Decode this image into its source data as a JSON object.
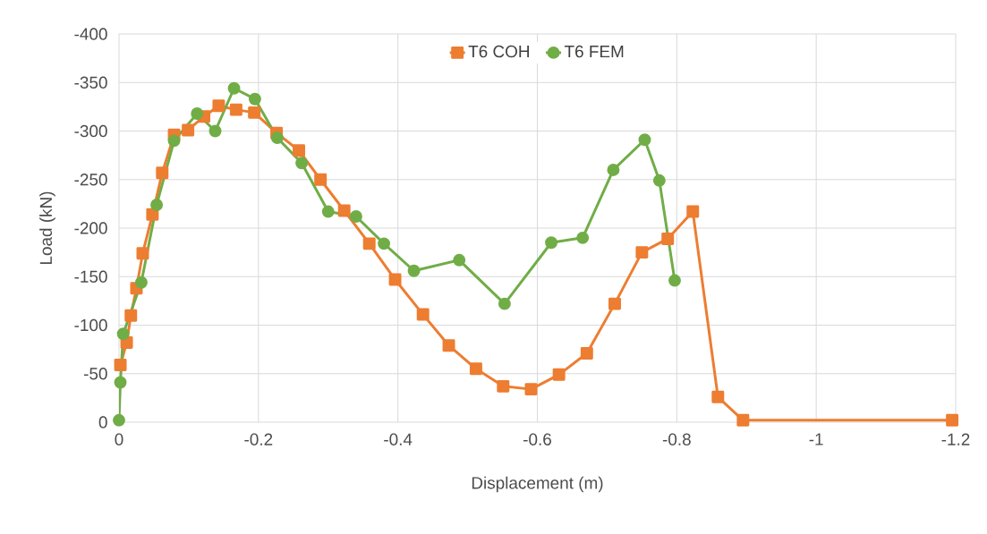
{
  "chart_data": {
    "type": "line",
    "xlabel": "Displacement (m)",
    "ylabel": "Load (kN)",
    "xlim": [
      0,
      -1.2
    ],
    "xticks": [
      0,
      -0.2,
      -0.4,
      -0.6,
      -0.8,
      -1,
      -1.2
    ],
    "ylim": [
      0,
      -400
    ],
    "yticks": [
      0,
      -50,
      -100,
      -150,
      -200,
      -250,
      -300,
      -350,
      -400
    ],
    "grid": true,
    "legend": "top",
    "line_style": "solid",
    "series": [
      {
        "name": "T6 COH",
        "color": "#ed7d31",
        "marker": "square",
        "x": [
          -0.002,
          -0.011,
          -0.017,
          -0.025,
          -0.034,
          -0.048,
          -0.062,
          -0.079,
          -0.099,
          -0.122,
          -0.143,
          -0.168,
          -0.194,
          -0.226,
          -0.258,
          -0.289,
          -0.323,
          -0.359,
          -0.396,
          -0.436,
          -0.473,
          -0.512,
          -0.551,
          -0.591,
          -0.631,
          -0.671,
          -0.711,
          -0.75,
          -0.787,
          -0.823,
          -0.859,
          -0.895,
          -1.195
        ],
        "values": [
          -59,
          -82,
          -110,
          -138,
          -174,
          -214,
          -257,
          -296,
          -301,
          -315,
          -326,
          -322,
          -319,
          -298,
          -280,
          -250,
          -218,
          -184,
          -147,
          -111,
          -79,
          -55,
          -37,
          -34,
          -49,
          -71,
          -122,
          -175,
          -189,
          -217,
          -26,
          -2,
          -2
        ]
      },
      {
        "name": "T6 FEM",
        "color": "#70ad47",
        "marker": "circle",
        "x": [
          0,
          -0.002,
          -0.006,
          -0.032,
          -0.054,
          -0.079,
          -0.112,
          -0.138,
          -0.165,
          -0.195,
          -0.227,
          -0.262,
          -0.3,
          -0.34,
          -0.38,
          -0.423,
          -0.488,
          -0.553,
          -0.62,
          -0.665,
          -0.709,
          -0.754,
          -0.775,
          -0.797
        ],
        "values": [
          -2,
          -41,
          -91,
          -144,
          -224,
          -290,
          -318,
          -300,
          -344,
          -333,
          -293,
          -267,
          -217,
          -212,
          -184,
          -156,
          -167,
          -122,
          -185,
          -190,
          -260,
          -291,
          -249,
          -146
        ]
      }
    ]
  }
}
